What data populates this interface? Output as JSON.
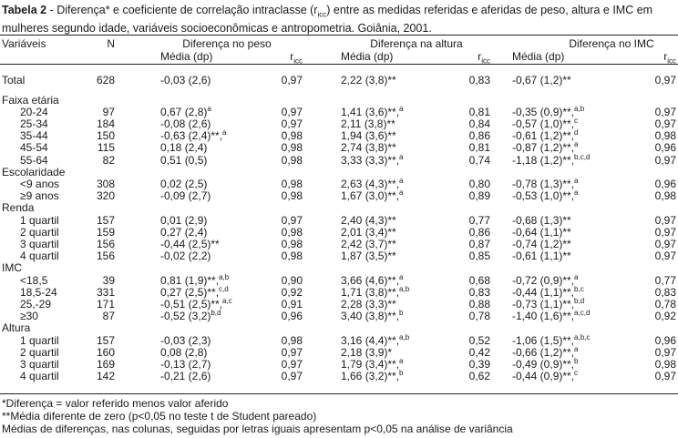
{
  "caption": {
    "label": "Tabela 2",
    "text": " - Diferença* e coeficiente de correlação intraclasse (r",
    "sub": "icc",
    "text2": ") entre as medidas referidas e aferidas de peso, altura e IMC em mulheres segundo idade, variáveis socioeconômicas e antropometria. Goiânia, 2001."
  },
  "headers": {
    "variaveis": "Variáveis",
    "n": "N",
    "peso": "Diferença no peso",
    "altura": "Diferença na altura",
    "imc": "Diferença no IMC",
    "media": "Média (dp)",
    "r": "r",
    "r_sub": "icc",
    "r_sub_imc": "ricc"
  },
  "total": {
    "label": "Total",
    "n": "628",
    "peso": "-0,03 (2,6)",
    "peso_sup": "",
    "r1": "0,97",
    "alt": "2,22 (3,8)**",
    "alt_sup": "",
    "r2": "0,83",
    "imc": "-0,67 (1,2)**",
    "imc_sup": "",
    "r3": "0,97"
  },
  "groups": [
    {
      "title": "Faixa etária",
      "rows": [
        {
          "label": "20-24",
          "n": "97",
          "peso": "0,67 (2,8)",
          "peso_sup": "a",
          "r1": "0,97",
          "alt": "1,41 (3,6)**,",
          "alt_sup": "a",
          "r2": "0,81",
          "imc": "-0,35 (0,9)**,",
          "imc_sup": "a,b",
          "r3": "0,97"
        },
        {
          "label": "25-34",
          "n": "184",
          "peso": "-0,08 (2,6)",
          "peso_sup": "",
          "r1": "0,97",
          "alt": "2,11 (3,8)**",
          "alt_sup": "",
          "r2": "0,84",
          "imc": "-0,57 (1,0)**,",
          "imc_sup": "c",
          "r3": "0,97"
        },
        {
          "label": "35-44",
          "n": "150",
          "peso": "-0,63 (2,4)**,",
          "peso_sup": "a",
          "r1": "0,98",
          "alt": "1,94 (3,6)**",
          "alt_sup": "",
          "r2": "0,86",
          "imc": "-0,61 (1,2)**,",
          "imc_sup": "d",
          "r3": "0,98"
        },
        {
          "label": "45-54",
          "n": "115",
          "peso": "0,18 (2,4)",
          "peso_sup": "",
          "r1": "0,98",
          "alt": "2,74 (3,8)**",
          "alt_sup": "",
          "r2": "0,81",
          "imc": "-0,87 (1,2)**,",
          "imc_sup": "a",
          "r3": "0,96"
        },
        {
          "label": "55-64",
          "n": "82",
          "peso": "0,51 (0,5)",
          "peso_sup": "",
          "r1": "0,98",
          "alt": "3,33 (3,3)**,",
          "alt_sup": "a",
          "r2": "0,74",
          "imc": "-1,18 (1,2)**,",
          "imc_sup": "b,c,d",
          "r3": "0,97"
        }
      ]
    },
    {
      "title": "Escolaridade",
      "rows": [
        {
          "label": "<9 anos",
          "n": "308",
          "peso": "0,02 (2,5)",
          "peso_sup": "",
          "r1": "0,98",
          "alt": "2,63 (4,3)**,",
          "alt_sup": "a",
          "r2": "0,80",
          "imc": "-0,78 (1,3)**,",
          "imc_sup": "a",
          "r3": "0,96"
        },
        {
          "label": "≥9 anos",
          "n": "320",
          "peso": "-0,09 (2,7)",
          "peso_sup": "",
          "r1": "0,98",
          "alt": "1,67 (3,0)**,",
          "alt_sup": "a",
          "r2": "0,89",
          "imc": "-0,53 (1,0)**,",
          "imc_sup": "a",
          "r3": "0,98"
        }
      ]
    },
    {
      "title": "Renda",
      "rows": [
        {
          "label": "1 quartil",
          "n": "157",
          "peso": "0,01 (2,9)",
          "peso_sup": "",
          "r1": "0,97",
          "alt": "2,40 (4,3)**",
          "alt_sup": "",
          "r2": "0,77",
          "imc": "-0,68 (1,3)**",
          "imc_sup": "",
          "r3": "0,97"
        },
        {
          "label": "2 quartil",
          "n": "159",
          "peso": "0,27 (2,4)",
          "peso_sup": "",
          "r1": "0,98",
          "alt": "2,01 (3,4)**",
          "alt_sup": "",
          "r2": "0,86",
          "imc": "-0,64 (1,1)**",
          "imc_sup": "",
          "r3": "0,97"
        },
        {
          "label": "3 quartil",
          "n": "156",
          "peso": "-0,44 (2,5)**",
          "peso_sup": "",
          "r1": "0,98",
          "alt": "2,42 (3,7)**",
          "alt_sup": "",
          "r2": "0,87",
          "imc": "-0,74 (1,2)**",
          "imc_sup": "",
          "r3": "0,97"
        },
        {
          "label": "4 quartil",
          "n": "156",
          "peso": "-0,02 (2,2)",
          "peso_sup": "",
          "r1": "0,98",
          "alt": "1,87 (3,5)**",
          "alt_sup": "",
          "r2": "0,85",
          "imc": "-0,61 (1,1)**",
          "imc_sup": "",
          "r3": "0,97"
        }
      ]
    },
    {
      "title": "IMC",
      "rows": [
        {
          "label": "<18,5",
          "n": "39",
          "peso": "0,81 (1,9)**,",
          "peso_sup": "a,b",
          "r1": "0,90",
          "alt": "3,66 (4,6)**,",
          "alt_sup": "a",
          "r2": "0,68",
          "imc": "-0,72 (0,9)**,",
          "imc_sup": "a",
          "r3": "0,77"
        },
        {
          "label": "18,5-24",
          "n": "331",
          "peso": "0,27 (2,5)**,",
          "peso_sup": "c,d",
          "r1": "0,92",
          "alt": "1,71 (3,8)**,",
          "alt_sup": "a,b",
          "r2": "0,83",
          "imc": "-0,44 (1,1)**,",
          "imc_sup": "b,c",
          "r3": "0,83"
        },
        {
          "label": "25,-29",
          "n": "171",
          "peso": "-0,51 (2,5)**,",
          "peso_sup": "a,c",
          "r1": "0,91",
          "alt": "2,28 (3,3)**",
          "alt_sup": "",
          "r2": "0,88",
          "imc": "-0,73 (1,1)**,",
          "imc_sup": "b,d",
          "r3": "0,78"
        },
        {
          "label": "≥30",
          "n": "87",
          "peso": "-0,52 (3,2)",
          "peso_sup": "b,d",
          "r1": "0,96",
          "alt": "3,40 (3,8)**,",
          "alt_sup": "b",
          "r2": "0,78",
          "imc": "-1,40 (1,6)**,",
          "imc_sup": "a,c,d",
          "r3": "0,92"
        }
      ]
    },
    {
      "title": "Altura",
      "rows": [
        {
          "label": "1 quartil",
          "n": "157",
          "peso": "-0,03 (2,3)",
          "peso_sup": "",
          "r1": "0,98",
          "alt": "3,16 (4,4)**,",
          "alt_sup": "a,b",
          "r2": "0,52",
          "imc": "-1,06 (1,5)**,",
          "imc_sup": "a,b,c",
          "r3": "0,96"
        },
        {
          "label": "2 quartil",
          "n": "160",
          "peso": "0,08 (2,8)",
          "peso_sup": "",
          "r1": "0,97",
          "alt": "2,18 (3,9)*",
          "alt_sup": "",
          "r2": "0,42",
          "imc": "-0,66 (1,2)**,",
          "imc_sup": "a",
          "r3": "0,97"
        },
        {
          "label": "3 quartil",
          "n": "169",
          "peso": "-0,13 (2,7)",
          "peso_sup": "",
          "r1": "0,97",
          "alt": "1,79 (3,4)**,",
          "alt_sup": "a",
          "r2": "0,39",
          "imc": "-0,49 (0,9)**,",
          "imc_sup": "b",
          "r3": "0,98"
        },
        {
          "label": "4 quartil",
          "n": "142",
          "peso": "-0,21 (2,6)",
          "peso_sup": "",
          "r1": "0,97",
          "alt": "1,66 (3,2)**,",
          "alt_sup": "b",
          "r2": "0,62",
          "imc": "-0,44 (0,9)**,",
          "imc_sup": "c",
          "r3": "0,97"
        }
      ]
    }
  ],
  "notes": [
    "*Diferença = valor referido menos valor aferido",
    "**Média diferente de zero (p<0,05 no teste t de Student pareado)",
    "Médias de diferenças, nas colunas, seguidas por letras iguais apresentam p<0,05 na análise de variância"
  ]
}
